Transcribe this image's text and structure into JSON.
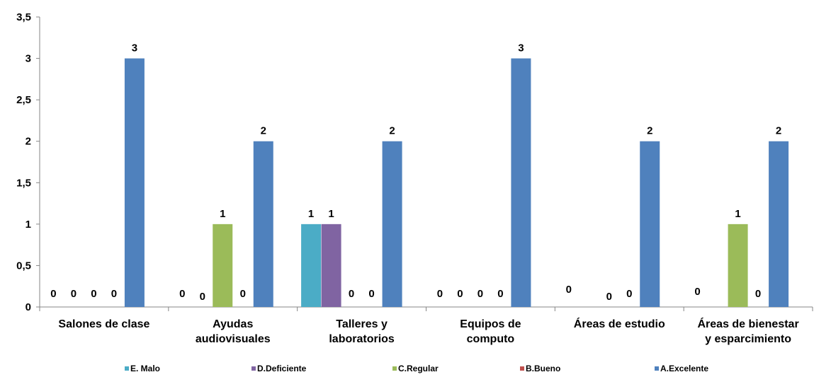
{
  "chart_data": {
    "type": "bar",
    "title": "",
    "xlabel": "",
    "ylabel": "",
    "ylim": [
      0,
      3.5
    ],
    "yticks": [
      "0",
      "0,5",
      "1",
      "1,5",
      "2",
      "2,5",
      "3",
      "3,5"
    ],
    "grid": false,
    "legend_position": "bottom",
    "categories": [
      [
        "Salones de clase"
      ],
      [
        "Ayudas",
        "audiovisuales"
      ],
      [
        "Talleres y",
        "laboratorios"
      ],
      [
        "Equipos de",
        "computo"
      ],
      [
        "Áreas de estudio"
      ],
      [
        "Áreas de bienestar",
        "y esparcimiento"
      ]
    ],
    "series": [
      {
        "name": "E. Malo",
        "color": "#4BACC6",
        "values": [
          0,
          0,
          1,
          0,
          0,
          0
        ],
        "labels": [
          "0",
          "0",
          "1",
          "0",
          "0",
          "0"
        ]
      },
      {
        "name": "D.Deficiente",
        "color": "#8064A2",
        "values": [
          0,
          0,
          1,
          0,
          null,
          null
        ],
        "labels": [
          "0",
          "0",
          "1",
          "0",
          "",
          ""
        ]
      },
      {
        "name": "C.Regular",
        "color": "#9BBB59",
        "values": [
          0,
          1,
          0,
          0,
          0,
          1
        ],
        "labels": [
          "0",
          "1",
          "0",
          "0",
          "0",
          "1"
        ]
      },
      {
        "name": "B.Bueno",
        "color": "#C0504D",
        "values": [
          0,
          0,
          0,
          0,
          0,
          0
        ],
        "labels": [
          "0",
          "0",
          "0",
          "0",
          "0",
          "0"
        ]
      },
      {
        "name": "A.Excelente",
        "color": "#4F81BD",
        "values": [
          3,
          2,
          2,
          3,
          2,
          2
        ],
        "labels": [
          "3",
          "2",
          "2",
          "3",
          "2",
          "2"
        ]
      }
    ]
  }
}
